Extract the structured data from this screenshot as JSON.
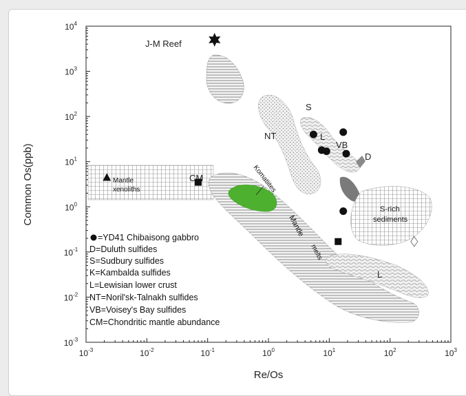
{
  "chart_data": {
    "type": "scatter",
    "xlabel": "Re/Os",
    "ylabel": "Common Os(ppb)",
    "xscale": "log",
    "yscale": "log",
    "xlim": [
      0.001,
      1000
    ],
    "ylim": [
      0.001,
      10000
    ],
    "x_ticks": [
      {
        "value": 0.001,
        "base": "10",
        "exp": "-3"
      },
      {
        "value": 0.01,
        "base": "10",
        "exp": "-2"
      },
      {
        "value": 0.1,
        "base": "10",
        "exp": "-1"
      },
      {
        "value": 1,
        "base": "10",
        "exp": "0"
      },
      {
        "value": 10,
        "base": "10",
        "exp": "1"
      },
      {
        "value": 100,
        "base": "10",
        "exp": "2"
      },
      {
        "value": 1000,
        "base": "10",
        "exp": "3"
      }
    ],
    "y_ticks": [
      {
        "value": 0.001,
        "base": "10",
        "exp": "-3"
      },
      {
        "value": 0.01,
        "base": "10",
        "exp": "-2"
      },
      {
        "value": 0.1,
        "base": "10",
        "exp": "-1"
      },
      {
        "value": 1,
        "base": "10",
        "exp": "0"
      },
      {
        "value": 10,
        "base": "10",
        "exp": "1"
      },
      {
        "value": 100,
        "base": "10",
        "exp": "2"
      },
      {
        "value": 1000,
        "base": "10",
        "exp": "3"
      },
      {
        "value": 10000,
        "base": "10",
        "exp": "4"
      }
    ],
    "series": [
      {
        "name": "YD41 Chibaisong gabbro",
        "marker": "circle",
        "x": [
          5.5,
          7.5,
          9,
          17,
          19,
          17
        ],
        "y": [
          40,
          18,
          17,
          45,
          15,
          0.8
        ]
      },
      {
        "marker": "square",
        "x": [
          0.07,
          14
        ],
        "y": [
          3.5,
          0.17
        ]
      },
      {
        "marker": "triangle",
        "x": [
          0.0022
        ],
        "y": [
          4.5
        ]
      },
      {
        "marker": "star",
        "x": [
          0.13
        ],
        "y": [
          5000
        ]
      },
      {
        "marker": "diamond",
        "x": [
          250
        ],
        "y": [
          0.17
        ]
      }
    ],
    "field_labels": {
      "jm_reef": "J-M Reef",
      "s": "S",
      "nt": "NT",
      "l1": "L",
      "vb": "VB",
      "d": "D",
      "cm": "CM",
      "mantle_xenoliths_1": "Mantle",
      "mantle_xenoliths_2": "xenoliths",
      "komatiites": "Komatiites",
      "mantle_melts_1": "Mantle",
      "mantle_melts_2": "melts",
      "l2": "L",
      "s_rich_1": "S-rich",
      "s_rich_2": "sediments"
    },
    "legend": [
      "=YD41 Chibaisong gabbro",
      "D=Duluth sulfides",
      "S=Sudbury sulfides",
      "K=Kambalda sulfides",
      "L=Lewisian lower crust",
      "NT=Noril'sk-Talnakh sulfides",
      "VB=Voisey's Bay sulfides",
      "CM=Chondritic mantle abundance"
    ],
    "colors": {
      "komatiite_fill": "#4db12f",
      "marker": "#111111"
    }
  }
}
